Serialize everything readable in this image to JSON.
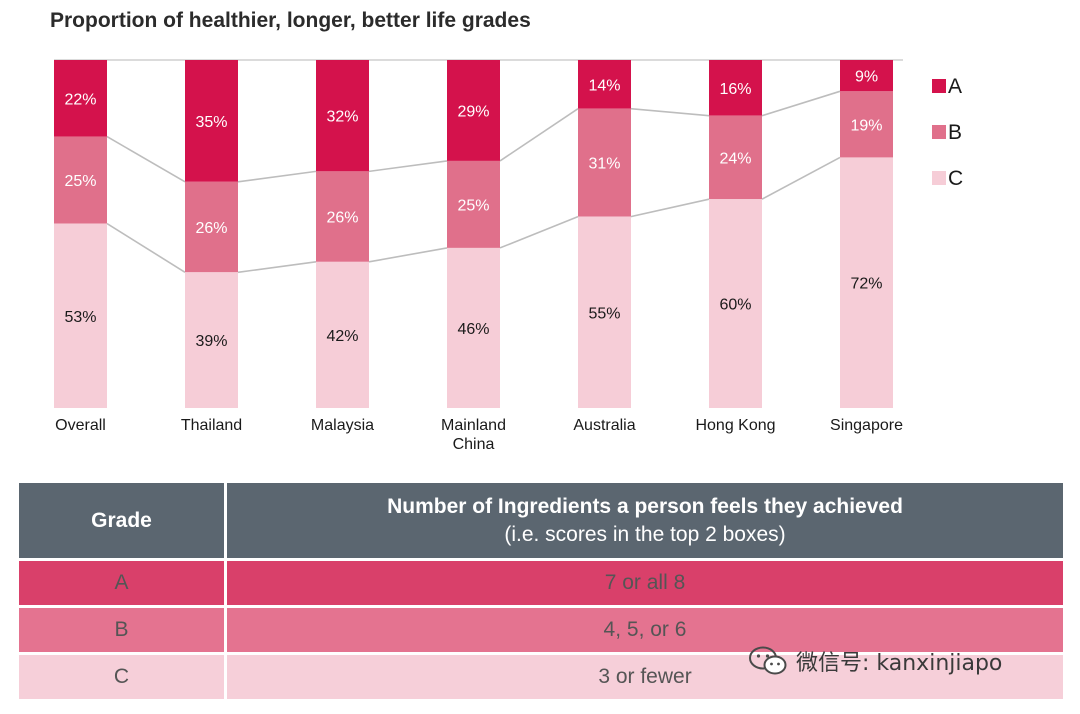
{
  "chart_data": {
    "type": "stacked-bar",
    "title": "Proportion of healthier, longer, better life grades",
    "categories": [
      "Overall",
      "Thailand",
      "Malaysia",
      "Mainland China",
      "Australia",
      "Hong Kong",
      "Singapore"
    ],
    "series": [
      {
        "name": "A",
        "color": "#d4124c",
        "values": [
          22,
          35,
          32,
          29,
          14,
          16,
          9
        ]
      },
      {
        "name": "B",
        "color": "#e0708b",
        "values": [
          25,
          26,
          26,
          25,
          31,
          24,
          19
        ]
      },
      {
        "name": "C",
        "color": "#f6cdd7",
        "values": [
          53,
          39,
          42,
          46,
          55,
          60,
          72
        ]
      }
    ],
    "value_suffix": "%",
    "ylim": [
      0,
      100
    ],
    "legend": "right",
    "connector_color": "#bdbdbd"
  },
  "table": {
    "headers": {
      "grade": "Grade",
      "ingredients": "Number of Ingredients a person feels they achieved",
      "ingredients_note": "(i.e. scores in the top 2 boxes)"
    },
    "rows": [
      {
        "grade": "A",
        "ingredients": "7 or all 8",
        "color": "#d9406a"
      },
      {
        "grade": "B",
        "ingredients": "4, 5, or 6",
        "color": "#e47390"
      },
      {
        "grade": "C",
        "ingredients": "3 or fewer",
        "color": "#f6cfd9"
      }
    ]
  },
  "watermark": {
    "icon": "wechat-icon",
    "text": "微信号: kanxinjiapo"
  }
}
